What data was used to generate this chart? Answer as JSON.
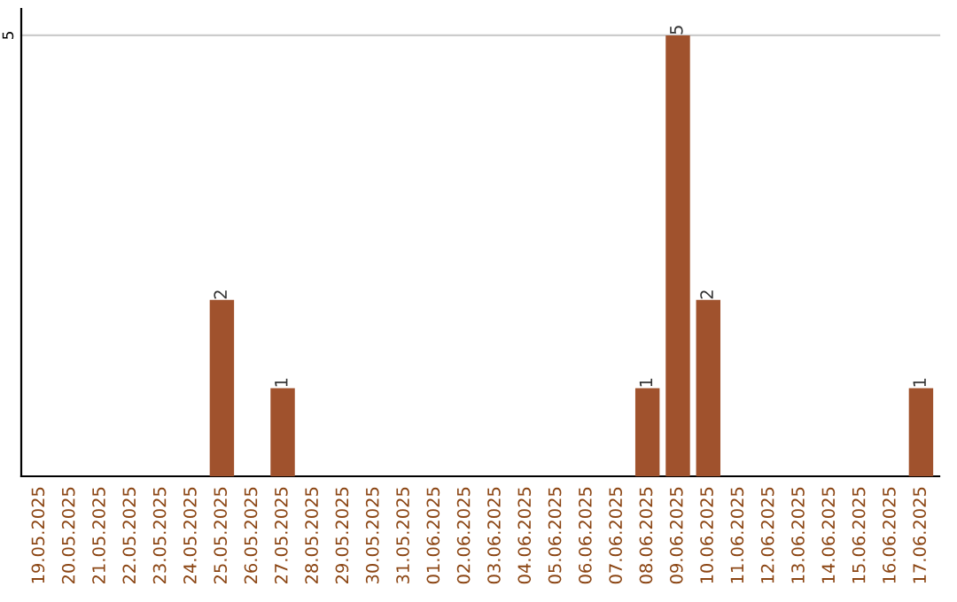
{
  "chart_data": {
    "type": "bar",
    "categories": [
      "19.05.2025",
      "20.05.2025",
      "21.05.2025",
      "22.05.2025",
      "23.05.2025",
      "24.05.2025",
      "25.05.2025",
      "26.05.2025",
      "27.05.2025",
      "28.05.2025",
      "29.05.2025",
      "30.05.2025",
      "31.05.2025",
      "01.06.2025",
      "02.06.2025",
      "03.06.2025",
      "04.06.2025",
      "05.06.2025",
      "06.06.2025",
      "07.06.2025",
      "08.06.2025",
      "09.06.2025",
      "10.06.2025",
      "11.06.2025",
      "12.06.2025",
      "13.06.2025",
      "14.06.2025",
      "15.06.2025",
      "16.06.2025",
      "17.06.2025"
    ],
    "values": [
      0,
      0,
      0,
      0,
      0,
      0,
      2,
      0,
      1,
      0,
      0,
      0,
      0,
      0,
      0,
      0,
      0,
      0,
      0,
      0,
      1,
      5,
      2,
      0,
      0,
      0,
      0,
      0,
      0,
      1
    ],
    "value_labels": [
      null,
      null,
      null,
      null,
      null,
      null,
      "2",
      null,
      "1",
      null,
      null,
      null,
      null,
      null,
      null,
      null,
      null,
      null,
      null,
      null,
      "1",
      "5",
      "2",
      null,
      null,
      null,
      null,
      null,
      null,
      "1"
    ],
    "color": "#a0522d",
    "ylim": [
      0,
      5.3
    ],
    "yticks": [
      5
    ],
    "grid": "y"
  }
}
